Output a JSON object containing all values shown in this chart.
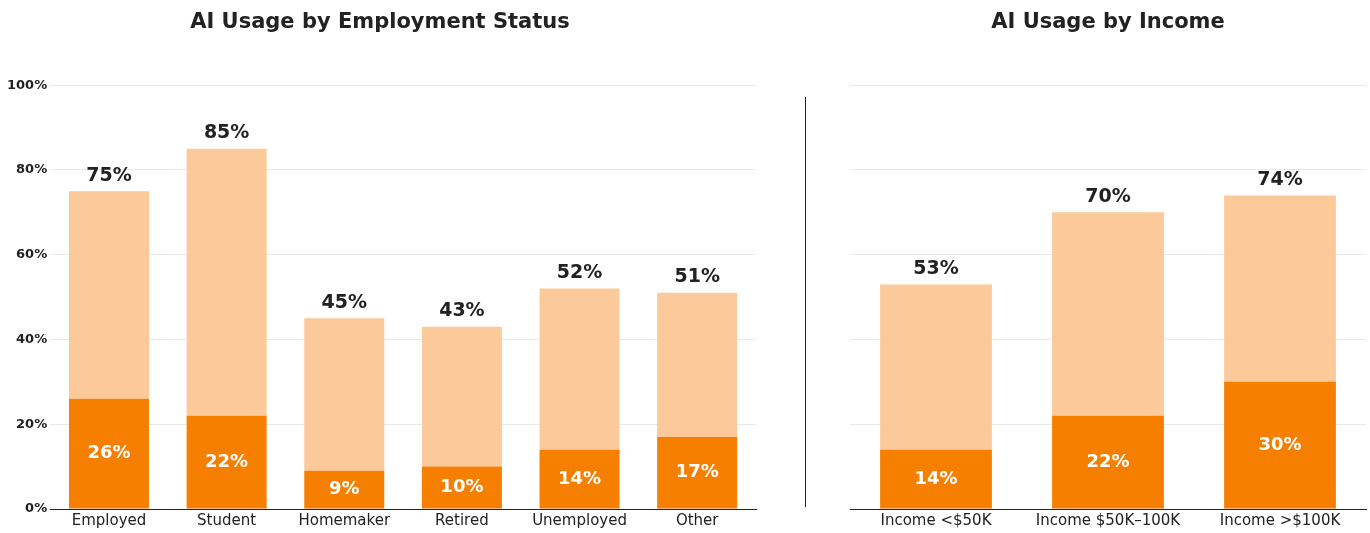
{
  "chart_data": [
    {
      "type": "bar",
      "title": "AI Usage by Employment Status",
      "stacked": true,
      "grid": "y",
      "legend": false,
      "categories": [
        "Employed",
        "Student",
        "Homemaker",
        "Retired",
        "Unemployed",
        "Other"
      ],
      "series": [
        {
          "color": "#f77f00",
          "values": [
            26,
            22,
            9,
            10,
            14,
            17
          ],
          "value_labels": [
            "26%",
            "22%",
            "9%",
            "10%",
            "14%",
            "17%"
          ]
        },
        {
          "color": "#fbc99a",
          "values": [
            49,
            63,
            36,
            33,
            38,
            34
          ]
        }
      ],
      "totals": [
        "75%",
        "85%",
        "45%",
        "43%",
        "52%",
        "51%"
      ],
      "ylim": [
        0,
        100
      ],
      "yticks": [
        {
          "value": 0,
          "label": "0%"
        },
        {
          "value": 20,
          "label": "20%"
        },
        {
          "value": 40,
          "label": "40%"
        },
        {
          "value": 60,
          "label": "60%"
        },
        {
          "value": 80,
          "label": "80%"
        },
        {
          "value": 100,
          "label": "100%"
        }
      ]
    },
    {
      "type": "bar",
      "title": "AI Usage by Income",
      "stacked": true,
      "grid": "y",
      "legend": false,
      "tick_labels": "x",
      "categories": [
        "Income <$50K",
        "Income $50K–100K",
        "Income >$100K"
      ],
      "series": [
        {
          "color": "#f77f00",
          "values": [
            14,
            22,
            30
          ],
          "value_labels": [
            "14%",
            "22%",
            "30%"
          ]
        },
        {
          "color": "#fbc99a",
          "values": [
            39,
            48,
            44
          ]
        }
      ],
      "totals": [
        "53%",
        "70%",
        "74%"
      ],
      "ylim": [
        0,
        100
      ],
      "yticks": [
        0,
        20,
        40,
        60,
        80,
        100
      ]
    }
  ]
}
